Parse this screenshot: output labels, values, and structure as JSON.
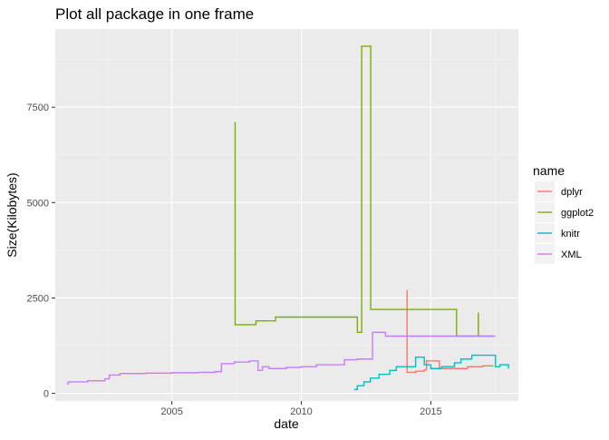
{
  "chart_data": {
    "type": "line",
    "title": "Plot all package in one frame",
    "xlabel": "date",
    "ylabel": "Size(Kilobytes)",
    "x_ticks": [
      "2005",
      "2010",
      "2015"
    ],
    "y_ticks": [
      "0",
      "2500",
      "5000",
      "7500"
    ],
    "xlim": [
      "2000-07-01",
      "2018-05-20"
    ],
    "ylim": [
      -200,
      9550
    ],
    "legend_title": "name",
    "legend_position": "right",
    "grid": true,
    "step": true,
    "series": [
      {
        "name": "dplyr",
        "color": "#F8766D",
        "points": [
          [
            "2014-01-29",
            2700
          ],
          [
            "2014-01-31",
            550
          ],
          [
            "2014-06-01",
            580
          ],
          [
            "2014-10-01",
            620
          ],
          [
            "2014-11-01",
            850
          ],
          [
            "2015-05-01",
            650
          ],
          [
            "2015-08-01",
            650
          ],
          [
            "2016-06-01",
            700
          ],
          [
            "2017-01-01",
            720
          ],
          [
            "2017-06-01",
            720
          ]
        ]
      },
      {
        "name": "ggplot2",
        "color": "#7CAE00",
        "points": [
          [
            "2007-06-10",
            7100
          ],
          [
            "2007-06-12",
            1800
          ],
          [
            "2008-04-01",
            1900
          ],
          [
            "2009-01-01",
            2000
          ],
          [
            "2012-03-01",
            1600
          ],
          [
            "2012-05-01",
            9100
          ],
          [
            "2012-09-05",
            2200
          ],
          [
            "2015-12-30",
            1500
          ],
          [
            "2016-11-01",
            2100
          ],
          [
            "2016-11-02",
            1500
          ],
          [
            "2017-06-01",
            1500
          ]
        ]
      },
      {
        "name": "knitr",
        "color": "#00BFC4",
        "points": [
          [
            "2012-01-17",
            100
          ],
          [
            "2012-03-01",
            200
          ],
          [
            "2012-06-01",
            300
          ],
          [
            "2012-09-01",
            400
          ],
          [
            "2013-01-01",
            500
          ],
          [
            "2013-06-01",
            600
          ],
          [
            "2013-09-01",
            700
          ],
          [
            "2014-06-01",
            950
          ],
          [
            "2014-10-01",
            750
          ],
          [
            "2015-01-01",
            650
          ],
          [
            "2015-06-01",
            700
          ],
          [
            "2015-12-01",
            800
          ],
          [
            "2016-03-01",
            900
          ],
          [
            "2016-08-01",
            1000
          ],
          [
            "2017-07-01",
            700
          ],
          [
            "2017-09-01",
            750
          ],
          [
            "2018-01-01",
            650
          ]
        ]
      },
      {
        "name": "XML",
        "color": "#C77CFF",
        "points": [
          [
            "2000-12-15",
            250
          ],
          [
            "2001-01-01",
            300
          ],
          [
            "2001-10-01",
            330
          ],
          [
            "2002-06-01",
            380
          ],
          [
            "2002-08-01",
            430
          ],
          [
            "2002-08-02",
            480
          ],
          [
            "2003-01-01",
            520
          ],
          [
            "2004-01-01",
            530
          ],
          [
            "2005-01-01",
            540
          ],
          [
            "2006-01-01",
            550
          ],
          [
            "2006-09-01",
            570
          ],
          [
            "2006-12-01",
            780
          ],
          [
            "2007-06-01",
            820
          ],
          [
            "2008-01-01",
            850
          ],
          [
            "2008-05-01",
            600
          ],
          [
            "2008-07-01",
            700
          ],
          [
            "2008-10-01",
            650
          ],
          [
            "2009-06-01",
            680
          ],
          [
            "2010-01-01",
            700
          ],
          [
            "2010-08-01",
            750
          ],
          [
            "2011-09-01",
            880
          ],
          [
            "2012-03-01",
            900
          ],
          [
            "2012-10-01",
            1600
          ],
          [
            "2013-04-01",
            1500
          ],
          [
            "2017-07-01",
            1500
          ]
        ]
      }
    ]
  }
}
